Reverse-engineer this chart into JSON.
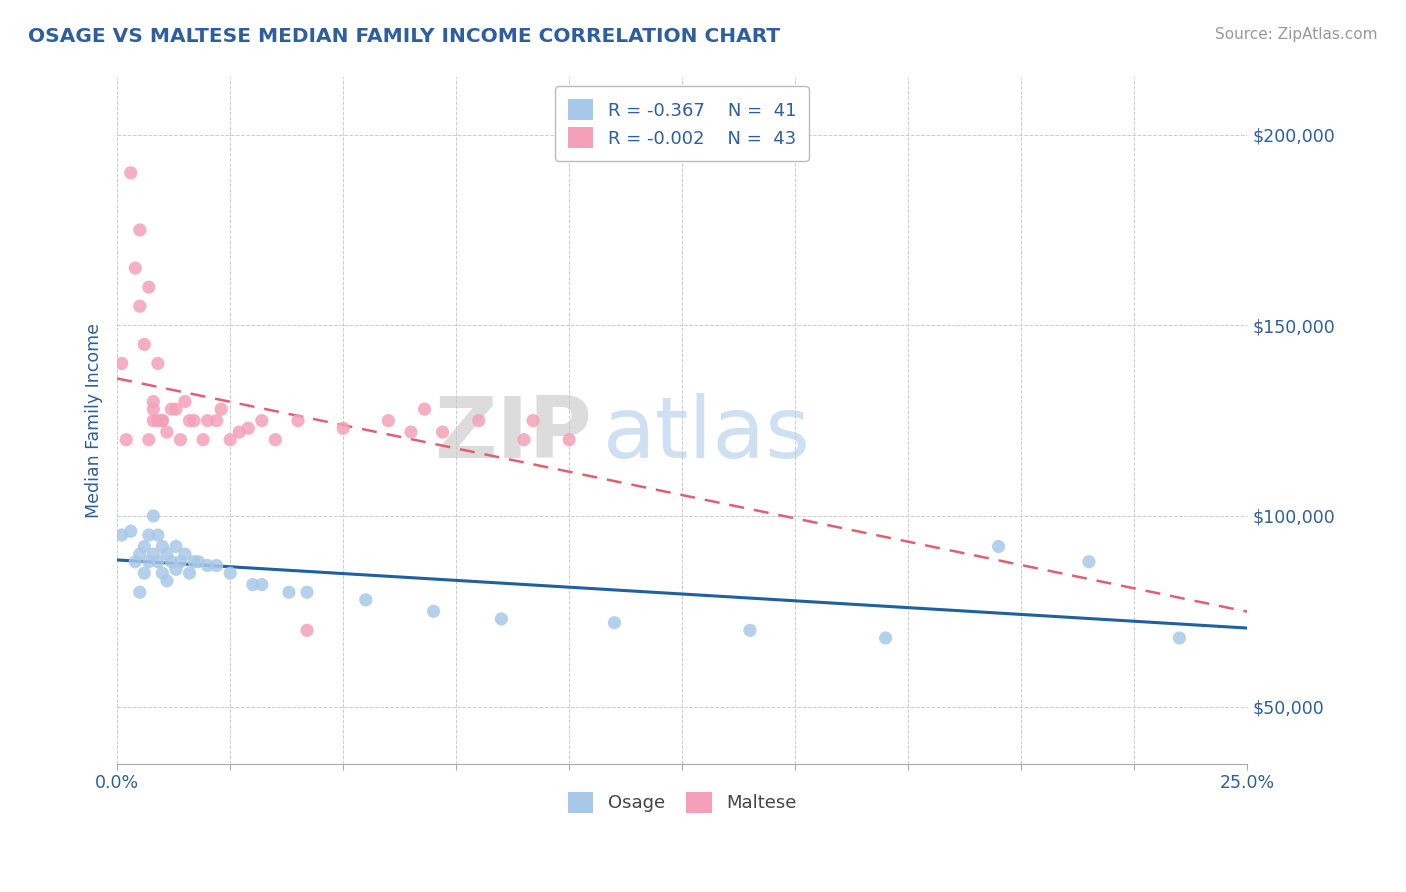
{
  "title": "OSAGE VS MALTESE MEDIAN FAMILY INCOME CORRELATION CHART",
  "source_text": "Source: ZipAtlas.com",
  "ylabel": "Median Family Income",
  "xlim": [
    0.0,
    0.25
  ],
  "ylim": [
    35000,
    215000
  ],
  "osage_color": "#a8c8e8",
  "maltese_color": "#f4a0b8",
  "osage_line_color": "#2060a0",
  "maltese_line_color": "#e06070",
  "background_color": "#ffffff",
  "grid_color": "#cccccc",
  "title_color": "#2d5fa0",
  "axis_label_color": "#2d5fa0",
  "tick_label_color": "#2d5fa0",
  "source_color": "#999999",
  "osage_x": [
    0.001,
    0.003,
    0.004,
    0.005,
    0.005,
    0.006,
    0.006,
    0.007,
    0.007,
    0.008,
    0.008,
    0.009,
    0.009,
    0.01,
    0.01,
    0.011,
    0.011,
    0.012,
    0.013,
    0.013,
    0.014,
    0.015,
    0.016,
    0.017,
    0.018,
    0.02,
    0.022,
    0.025,
    0.03,
    0.032,
    0.038,
    0.042,
    0.055,
    0.07,
    0.085,
    0.11,
    0.14,
    0.17,
    0.195,
    0.215,
    0.235
  ],
  "osage_y": [
    95000,
    96000,
    88000,
    90000,
    80000,
    92000,
    85000,
    95000,
    88000,
    100000,
    90000,
    95000,
    88000,
    92000,
    85000,
    90000,
    83000,
    88000,
    92000,
    86000,
    88000,
    90000,
    85000,
    88000,
    88000,
    87000,
    87000,
    85000,
    82000,
    82000,
    80000,
    80000,
    78000,
    75000,
    73000,
    72000,
    70000,
    68000,
    92000,
    88000,
    68000
  ],
  "maltese_x": [
    0.001,
    0.002,
    0.003,
    0.004,
    0.005,
    0.005,
    0.006,
    0.007,
    0.007,
    0.008,
    0.008,
    0.008,
    0.009,
    0.009,
    0.01,
    0.01,
    0.011,
    0.012,
    0.013,
    0.014,
    0.015,
    0.016,
    0.017,
    0.019,
    0.02,
    0.022,
    0.023,
    0.025,
    0.027,
    0.029,
    0.032,
    0.035,
    0.04,
    0.042,
    0.05,
    0.06,
    0.065,
    0.068,
    0.072,
    0.08,
    0.09,
    0.092,
    0.1
  ],
  "maltese_y": [
    140000,
    120000,
    190000,
    165000,
    155000,
    175000,
    145000,
    160000,
    120000,
    130000,
    128000,
    125000,
    140000,
    125000,
    125000,
    125000,
    122000,
    128000,
    128000,
    120000,
    130000,
    125000,
    125000,
    120000,
    125000,
    125000,
    128000,
    120000,
    122000,
    123000,
    125000,
    120000,
    125000,
    70000,
    123000,
    125000,
    122000,
    128000,
    122000,
    125000,
    120000,
    125000,
    120000
  ],
  "watermark_zip": "ZIP",
  "watermark_atlas": "atlas",
  "legend_items": [
    {
      "color": "#a8c8e8",
      "text": "R = -0.367    N =  41"
    },
    {
      "color": "#f4a0b8",
      "text": "R = -0.002    N =  43"
    }
  ],
  "bottom_legend": [
    {
      "color": "#a8c8e8",
      "label": "Osage"
    },
    {
      "color": "#f4a0b8",
      "label": "Maltese"
    }
  ]
}
